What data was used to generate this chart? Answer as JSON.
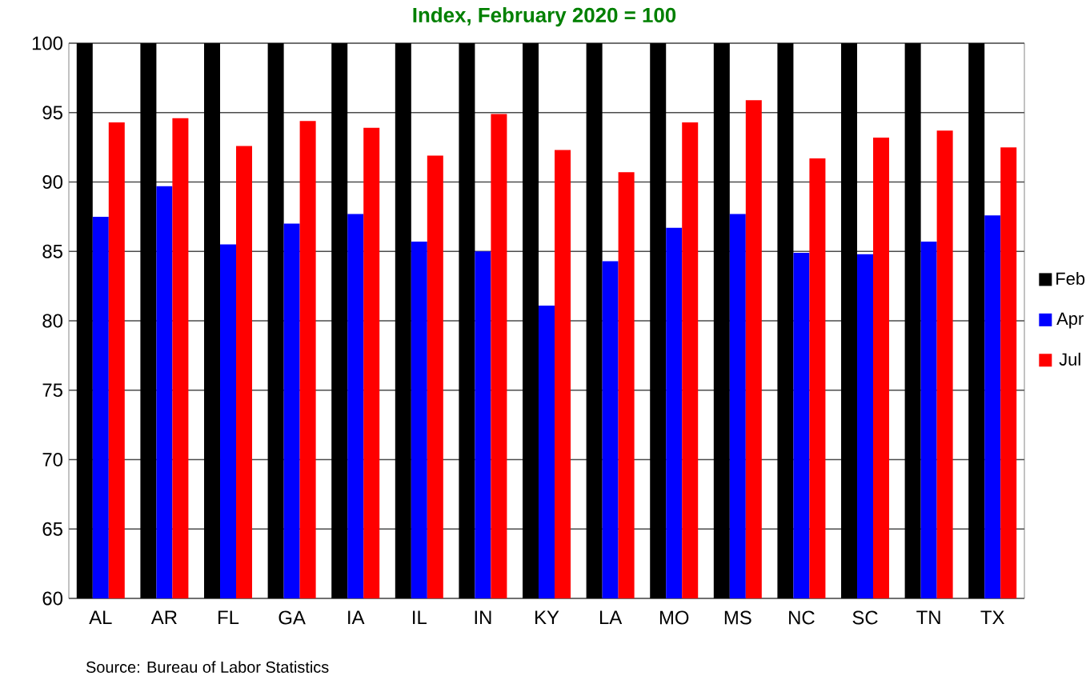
{
  "chart_data": {
    "type": "bar",
    "title": "Index, February 2020 = 100",
    "categories": [
      "AL",
      "AR",
      "FL",
      "GA",
      "IA",
      "IL",
      "IN",
      "KY",
      "LA",
      "MO",
      "MS",
      "NC",
      "SC",
      "TN",
      "TX"
    ],
    "series": [
      {
        "name": "Feb",
        "color": "#000000",
        "values": [
          100,
          100,
          100,
          100,
          100,
          100,
          100,
          100,
          100,
          100,
          100,
          100,
          100,
          100,
          100
        ]
      },
      {
        "name": "Apr",
        "color": "#0000ff",
        "values": [
          87.5,
          89.7,
          85.5,
          87.0,
          87.7,
          85.7,
          85.0,
          81.1,
          84.3,
          86.7,
          87.7,
          84.9,
          84.8,
          85.7,
          87.6
        ]
      },
      {
        "name": "Jul",
        "color": "#ff0000",
        "values": [
          94.3,
          94.6,
          92.6,
          94.4,
          93.9,
          91.9,
          94.9,
          92.3,
          90.7,
          94.3,
          95.9,
          91.7,
          93.2,
          93.7,
          92.5
        ]
      }
    ],
    "ylim": [
      60,
      100
    ],
    "yticks": [
      60,
      65,
      70,
      75,
      80,
      85,
      90,
      95,
      100
    ],
    "grid": "y",
    "legend": "right",
    "annotations": [
      "Source: Bureau of Labor Statistics"
    ]
  }
}
